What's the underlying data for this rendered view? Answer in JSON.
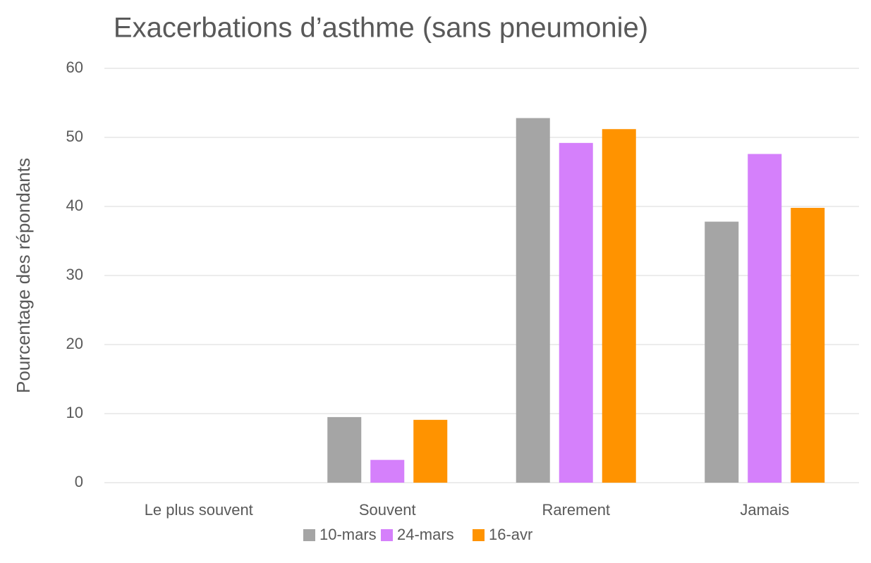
{
  "chart_data": {
    "type": "bar",
    "title": "Exacerbations d’asthme (sans pneumonie)",
    "y_label": "Pourcentage des répondants",
    "categories": [
      "Le plus souvent",
      "Souvent",
      "Rarement",
      "Jamais"
    ],
    "series": [
      {
        "name": "10-mars",
        "color": "#a5a5a5",
        "values": [
          0,
          9.5,
          52.8,
          37.8
        ]
      },
      {
        "name": "24-mars",
        "color": "#d580fb",
        "values": [
          0,
          3.3,
          49.2,
          47.6
        ]
      },
      {
        "name": "16-avr",
        "color": "#ff9300",
        "values": [
          0,
          9.1,
          51.2,
          39.8
        ]
      }
    ],
    "ylim": [
      0,
      60
    ],
    "yticks": [
      0,
      10,
      20,
      30,
      40,
      50,
      60
    ],
    "grid": true,
    "legend": "bottom"
  }
}
